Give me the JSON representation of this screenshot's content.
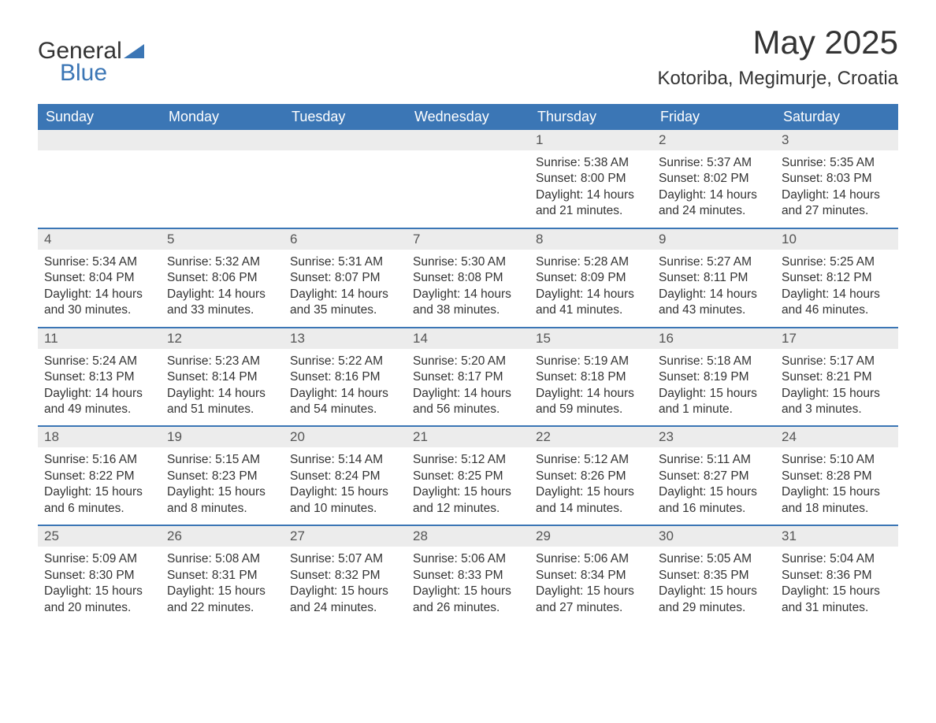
{
  "brand": {
    "word1": "General",
    "word2": "Blue",
    "accent_color": "#3b76b5"
  },
  "title": {
    "month": "May 2025",
    "location": "Kotoriba, Megimurje, Croatia"
  },
  "colors": {
    "header_bg": "#3b76b5",
    "header_text": "#ffffff",
    "daynum_bg": "#ececec",
    "border_top": "#3b76b5",
    "body_text": "#333333",
    "page_bg": "#ffffff"
  },
  "typography": {
    "title_fontsize": 42,
    "location_fontsize": 24,
    "weekday_fontsize": 18,
    "daynum_fontsize": 17,
    "body_fontsize": 15.5,
    "font_family": "Arial"
  },
  "layout": {
    "columns": 7,
    "rows": 5,
    "leading_blanks": 4
  },
  "weekdays": [
    "Sunday",
    "Monday",
    "Tuesday",
    "Wednesday",
    "Thursday",
    "Friday",
    "Saturday"
  ],
  "days": [
    {
      "n": "1",
      "sunrise": "Sunrise: 5:38 AM",
      "sunset": "Sunset: 8:00 PM",
      "daylight": "Daylight: 14 hours and 21 minutes."
    },
    {
      "n": "2",
      "sunrise": "Sunrise: 5:37 AM",
      "sunset": "Sunset: 8:02 PM",
      "daylight": "Daylight: 14 hours and 24 minutes."
    },
    {
      "n": "3",
      "sunrise": "Sunrise: 5:35 AM",
      "sunset": "Sunset: 8:03 PM",
      "daylight": "Daylight: 14 hours and 27 minutes."
    },
    {
      "n": "4",
      "sunrise": "Sunrise: 5:34 AM",
      "sunset": "Sunset: 8:04 PM",
      "daylight": "Daylight: 14 hours and 30 minutes."
    },
    {
      "n": "5",
      "sunrise": "Sunrise: 5:32 AM",
      "sunset": "Sunset: 8:06 PM",
      "daylight": "Daylight: 14 hours and 33 minutes."
    },
    {
      "n": "6",
      "sunrise": "Sunrise: 5:31 AM",
      "sunset": "Sunset: 8:07 PM",
      "daylight": "Daylight: 14 hours and 35 minutes."
    },
    {
      "n": "7",
      "sunrise": "Sunrise: 5:30 AM",
      "sunset": "Sunset: 8:08 PM",
      "daylight": "Daylight: 14 hours and 38 minutes."
    },
    {
      "n": "8",
      "sunrise": "Sunrise: 5:28 AM",
      "sunset": "Sunset: 8:09 PM",
      "daylight": "Daylight: 14 hours and 41 minutes."
    },
    {
      "n": "9",
      "sunrise": "Sunrise: 5:27 AM",
      "sunset": "Sunset: 8:11 PM",
      "daylight": "Daylight: 14 hours and 43 minutes."
    },
    {
      "n": "10",
      "sunrise": "Sunrise: 5:25 AM",
      "sunset": "Sunset: 8:12 PM",
      "daylight": "Daylight: 14 hours and 46 minutes."
    },
    {
      "n": "11",
      "sunrise": "Sunrise: 5:24 AM",
      "sunset": "Sunset: 8:13 PM",
      "daylight": "Daylight: 14 hours and 49 minutes."
    },
    {
      "n": "12",
      "sunrise": "Sunrise: 5:23 AM",
      "sunset": "Sunset: 8:14 PM",
      "daylight": "Daylight: 14 hours and 51 minutes."
    },
    {
      "n": "13",
      "sunrise": "Sunrise: 5:22 AM",
      "sunset": "Sunset: 8:16 PM",
      "daylight": "Daylight: 14 hours and 54 minutes."
    },
    {
      "n": "14",
      "sunrise": "Sunrise: 5:20 AM",
      "sunset": "Sunset: 8:17 PM",
      "daylight": "Daylight: 14 hours and 56 minutes."
    },
    {
      "n": "15",
      "sunrise": "Sunrise: 5:19 AM",
      "sunset": "Sunset: 8:18 PM",
      "daylight": "Daylight: 14 hours and 59 minutes."
    },
    {
      "n": "16",
      "sunrise": "Sunrise: 5:18 AM",
      "sunset": "Sunset: 8:19 PM",
      "daylight": "Daylight: 15 hours and 1 minute."
    },
    {
      "n": "17",
      "sunrise": "Sunrise: 5:17 AM",
      "sunset": "Sunset: 8:21 PM",
      "daylight": "Daylight: 15 hours and 3 minutes."
    },
    {
      "n": "18",
      "sunrise": "Sunrise: 5:16 AM",
      "sunset": "Sunset: 8:22 PM",
      "daylight": "Daylight: 15 hours and 6 minutes."
    },
    {
      "n": "19",
      "sunrise": "Sunrise: 5:15 AM",
      "sunset": "Sunset: 8:23 PM",
      "daylight": "Daylight: 15 hours and 8 minutes."
    },
    {
      "n": "20",
      "sunrise": "Sunrise: 5:14 AM",
      "sunset": "Sunset: 8:24 PM",
      "daylight": "Daylight: 15 hours and 10 minutes."
    },
    {
      "n": "21",
      "sunrise": "Sunrise: 5:12 AM",
      "sunset": "Sunset: 8:25 PM",
      "daylight": "Daylight: 15 hours and 12 minutes."
    },
    {
      "n": "22",
      "sunrise": "Sunrise: 5:12 AM",
      "sunset": "Sunset: 8:26 PM",
      "daylight": "Daylight: 15 hours and 14 minutes."
    },
    {
      "n": "23",
      "sunrise": "Sunrise: 5:11 AM",
      "sunset": "Sunset: 8:27 PM",
      "daylight": "Daylight: 15 hours and 16 minutes."
    },
    {
      "n": "24",
      "sunrise": "Sunrise: 5:10 AM",
      "sunset": "Sunset: 8:28 PM",
      "daylight": "Daylight: 15 hours and 18 minutes."
    },
    {
      "n": "25",
      "sunrise": "Sunrise: 5:09 AM",
      "sunset": "Sunset: 8:30 PM",
      "daylight": "Daylight: 15 hours and 20 minutes."
    },
    {
      "n": "26",
      "sunrise": "Sunrise: 5:08 AM",
      "sunset": "Sunset: 8:31 PM",
      "daylight": "Daylight: 15 hours and 22 minutes."
    },
    {
      "n": "27",
      "sunrise": "Sunrise: 5:07 AM",
      "sunset": "Sunset: 8:32 PM",
      "daylight": "Daylight: 15 hours and 24 minutes."
    },
    {
      "n": "28",
      "sunrise": "Sunrise: 5:06 AM",
      "sunset": "Sunset: 8:33 PM",
      "daylight": "Daylight: 15 hours and 26 minutes."
    },
    {
      "n": "29",
      "sunrise": "Sunrise: 5:06 AM",
      "sunset": "Sunset: 8:34 PM",
      "daylight": "Daylight: 15 hours and 27 minutes."
    },
    {
      "n": "30",
      "sunrise": "Sunrise: 5:05 AM",
      "sunset": "Sunset: 8:35 PM",
      "daylight": "Daylight: 15 hours and 29 minutes."
    },
    {
      "n": "31",
      "sunrise": "Sunrise: 5:04 AM",
      "sunset": "Sunset: 8:36 PM",
      "daylight": "Daylight: 15 hours and 31 minutes."
    }
  ]
}
